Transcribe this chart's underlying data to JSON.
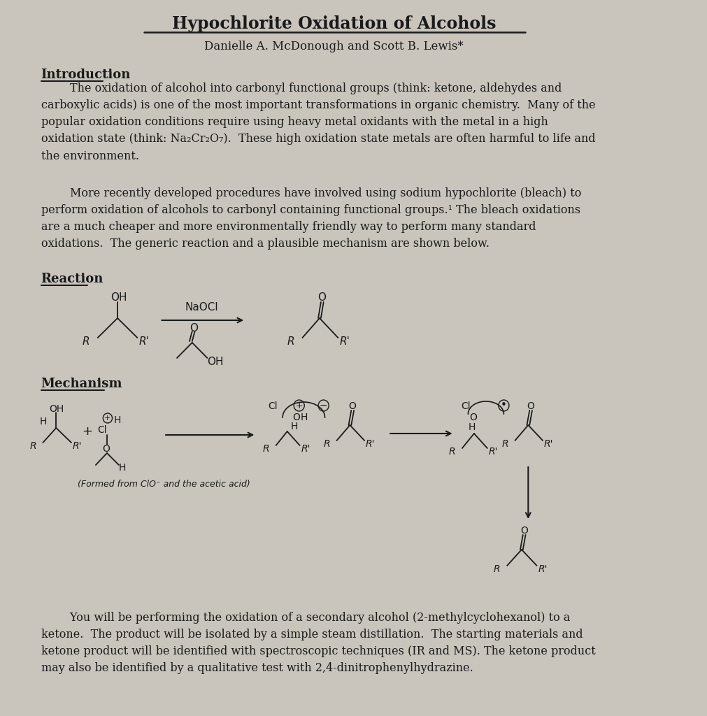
{
  "title": "Hypochlorite Oxidation of Alcohols",
  "authors": "Danielle A. McDonough and Scott B. Lewis*",
  "bg_color": "#c9c5bc",
  "text_color": "#1a1a1a",
  "intro_heading": "Introduction",
  "intro_p1": "        The oxidation of alcohol into carbonyl functional groups (think: ketone, aldehydes and\ncarboxylic acids) is one of the most important transformations in organic chemistry.  Many of the\npopular oxidation conditions require using heavy metal oxidants with the metal in a high\noxidation state (think: Na₂Cr₂O₇).  These high oxidation state metals are often harmful to life and\nthe environment.",
  "intro_p2": "        More recently developed procedures have involved using sodium hypochlorite (bleach) to\nperform oxidation of alcohols to carbonyl containing functional groups.¹ The bleach oxidations\nare a much cheaper and more environmentally friendly way to perform many standard\noxidations.  The generic reaction and a plausible mechanism are shown below.",
  "reaction_heading": "Reaction",
  "mechanism_heading": "Mechanism",
  "formed_note": "(Formed from ClO⁻ and the acetic acid)",
  "closing_para": "        You will be performing the oxidation of a secondary alcohol (2-methylcyclohexanol) to a\nketone.  The product will be isolated by a simple steam distillation.  The starting materials and\nketone product will be identified with spectroscopic techniques (IR and MS). The ketone product\nmay also be identified by a qualitative test with 2,4-dinitrophenylhydrazine."
}
